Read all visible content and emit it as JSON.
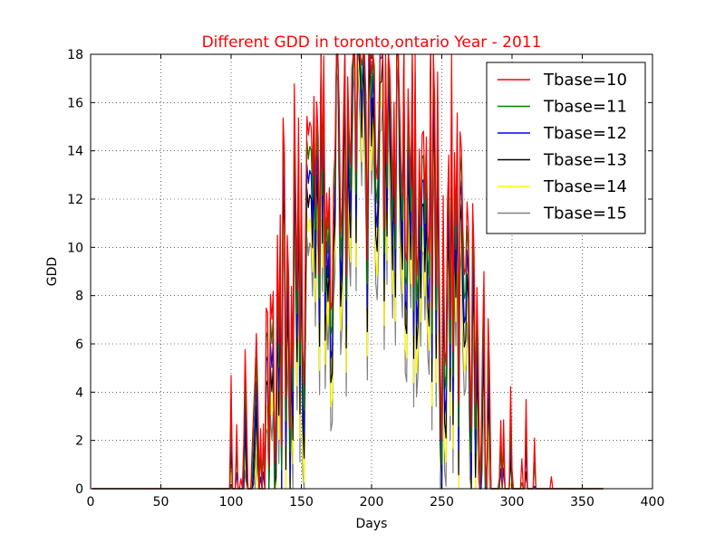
{
  "chart_data": {
    "type": "line",
    "title": "Different GDD in toronto,ontario Year - 2011",
    "title_color": "#ff0000",
    "xlabel": "Days",
    "ylabel": "GDD",
    "xlim": [
      0,
      400
    ],
    "ylim": [
      0,
      18
    ],
    "xticks": [
      0,
      50,
      100,
      150,
      200,
      250,
      300,
      350,
      400
    ],
    "yticks": [
      0,
      2,
      4,
      6,
      8,
      10,
      12,
      14,
      16,
      18
    ],
    "grid": true,
    "legend_position": "top-right",
    "x_range": [
      1,
      365
    ],
    "daily_mean_temperature_note": "",
    "series": [
      {
        "name": "Tbase=10",
        "color": "#ff0000",
        "tbase": 10
      },
      {
        "name": "Tbase=11",
        "color": "#008000",
        "tbase": 11
      },
      {
        "name": "Tbase=12",
        "color": "#0000ff",
        "tbase": 12
      },
      {
        "name": "Tbase=13",
        "color": "#000000",
        "tbase": 13
      },
      {
        "name": "Tbase=14",
        "color": "#ffff00",
        "tbase": 14
      },
      {
        "name": "Tbase=15",
        "color": "#808080",
        "tbase": 15
      }
    ],
    "red_series_samples": [
      {
        "x": 100,
        "y": 4.7
      },
      {
        "x": 111,
        "y": 3.3
      },
      {
        "x": 117,
        "y": 4.6
      },
      {
        "x": 133,
        "y": 10.5
      },
      {
        "x": 140,
        "y": 10.5
      },
      {
        "x": 150,
        "y": 13.5
      },
      {
        "x": 157,
        "y": 15.0
      },
      {
        "x": 180,
        "y": 15.5
      },
      {
        "x": 196,
        "y": 16.3
      },
      {
        "x": 200,
        "y": 17.2
      },
      {
        "x": 202,
        "y": 17.5
      },
      {
        "x": 214,
        "y": 15.3
      },
      {
        "x": 245,
        "y": 16.0
      },
      {
        "x": 250,
        "y": 2.0
      },
      {
        "x": 265,
        "y": 10.8
      },
      {
        "x": 280,
        "y": 9.0
      },
      {
        "x": 300,
        "y": 0.8
      },
      {
        "x": 310,
        "y": 3.7
      },
      {
        "x": 316,
        "y": 2.1
      },
      {
        "x": 328,
        "y": 0.5
      }
    ]
  }
}
